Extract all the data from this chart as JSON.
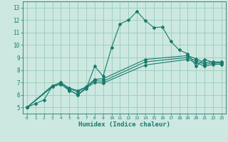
{
  "xlabel": "Humidex (Indice chaleur)",
  "bg_color": "#cce8e0",
  "grid_color": "#99ccbb",
  "line_color": "#1a7a6e",
  "xlim": [
    -0.5,
    23.5
  ],
  "ylim": [
    4.5,
    13.5
  ],
  "xticks": [
    0,
    1,
    2,
    3,
    4,
    5,
    6,
    7,
    8,
    9,
    10,
    11,
    12,
    13,
    14,
    15,
    16,
    17,
    18,
    19,
    20,
    21,
    22,
    23
  ],
  "yticks": [
    5,
    6,
    7,
    8,
    9,
    10,
    11,
    12,
    13
  ],
  "line1_x": [
    0,
    1,
    2,
    3,
    4,
    5,
    6,
    7,
    8,
    9,
    10,
    11,
    12,
    13,
    14,
    15,
    16,
    17,
    18,
    19,
    20,
    21,
    22,
    23
  ],
  "line1_y": [
    5.0,
    5.3,
    5.6,
    6.7,
    7.0,
    6.4,
    6.0,
    6.5,
    8.3,
    7.5,
    9.8,
    11.7,
    12.0,
    12.7,
    11.95,
    11.4,
    11.45,
    10.3,
    9.6,
    9.3,
    8.3,
    8.85,
    8.6,
    8.6
  ],
  "line2_x": [
    0,
    3,
    4,
    5,
    6,
    7,
    8,
    9,
    14,
    19,
    20,
    21,
    22,
    23
  ],
  "line2_y": [
    5.0,
    6.7,
    7.0,
    6.5,
    6.25,
    6.6,
    7.15,
    7.1,
    8.65,
    9.0,
    8.75,
    8.45,
    8.55,
    8.55
  ],
  "line3_x": [
    0,
    3,
    4,
    5,
    6,
    7,
    8,
    9,
    14,
    19,
    20,
    21,
    22,
    23
  ],
  "line3_y": [
    5.0,
    6.65,
    6.85,
    6.35,
    6.05,
    6.55,
    7.0,
    6.95,
    8.4,
    8.85,
    8.6,
    8.3,
    8.45,
    8.45
  ],
  "line4_x": [
    0,
    3,
    4,
    5,
    6,
    7,
    8,
    9,
    14,
    19,
    20,
    21,
    22,
    23
  ],
  "line4_y": [
    5.0,
    6.75,
    6.95,
    6.55,
    6.35,
    6.65,
    7.25,
    7.3,
    8.85,
    9.15,
    8.9,
    8.6,
    8.65,
    8.65
  ]
}
